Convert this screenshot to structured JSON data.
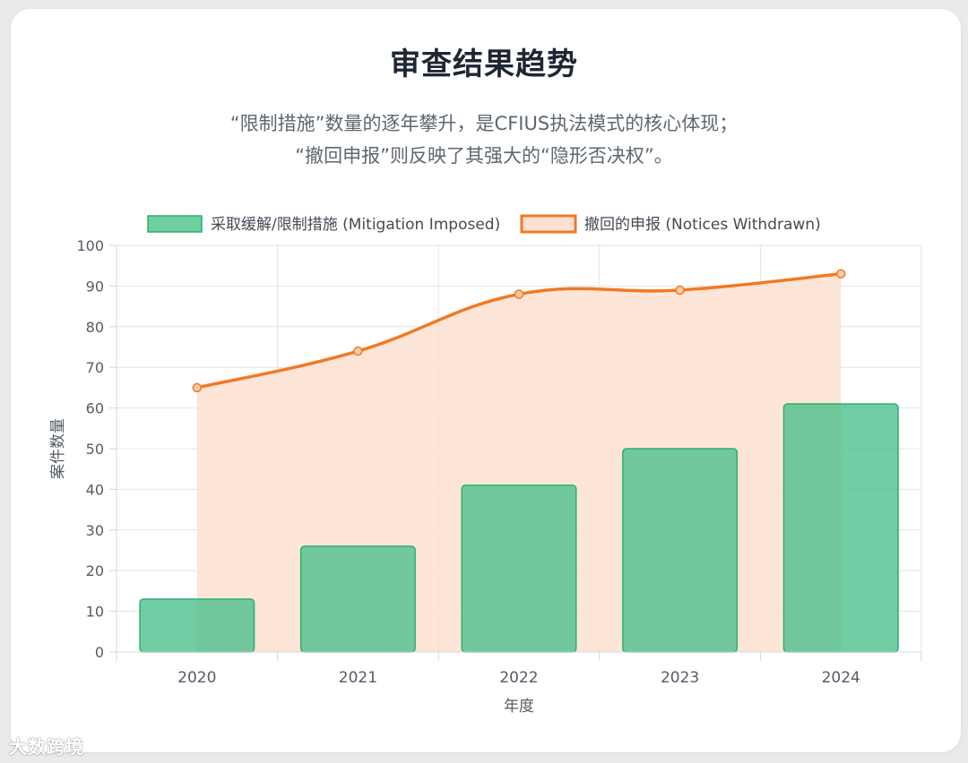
{
  "header": {
    "title": "审查结果趋势",
    "subtitle_line1": "“限制措施”数量的逐年攀升，是CFIUS执法模式的核心体现；",
    "subtitle_line2": "“撤回申报”则反映了其强大的“隐形否决权”。"
  },
  "watermark": "大数跨境",
  "chart_data": {
    "type": "bar",
    "categories": [
      "2020",
      "2021",
      "2022",
      "2023",
      "2024"
    ],
    "series": [
      {
        "name": "采取缓解/限制措施 (Mitigation Imposed)",
        "kind": "bar",
        "values": [
          13,
          26,
          41,
          50,
          61
        ],
        "color": "#4cc08d"
      },
      {
        "name": "撤回的申报 (Notices Withdrawn)",
        "kind": "area-line",
        "values": [
          65,
          74,
          88,
          89,
          93
        ],
        "color": "#f07a24",
        "fill": "#fde0d0"
      }
    ],
    "xlabel": "年度",
    "ylabel": "案件数量",
    "ylim": [
      0,
      100
    ],
    "yticks": [
      0,
      10,
      20,
      30,
      40,
      50,
      60,
      70,
      80,
      90,
      100
    ],
    "grid": true,
    "legend_position": "top"
  }
}
